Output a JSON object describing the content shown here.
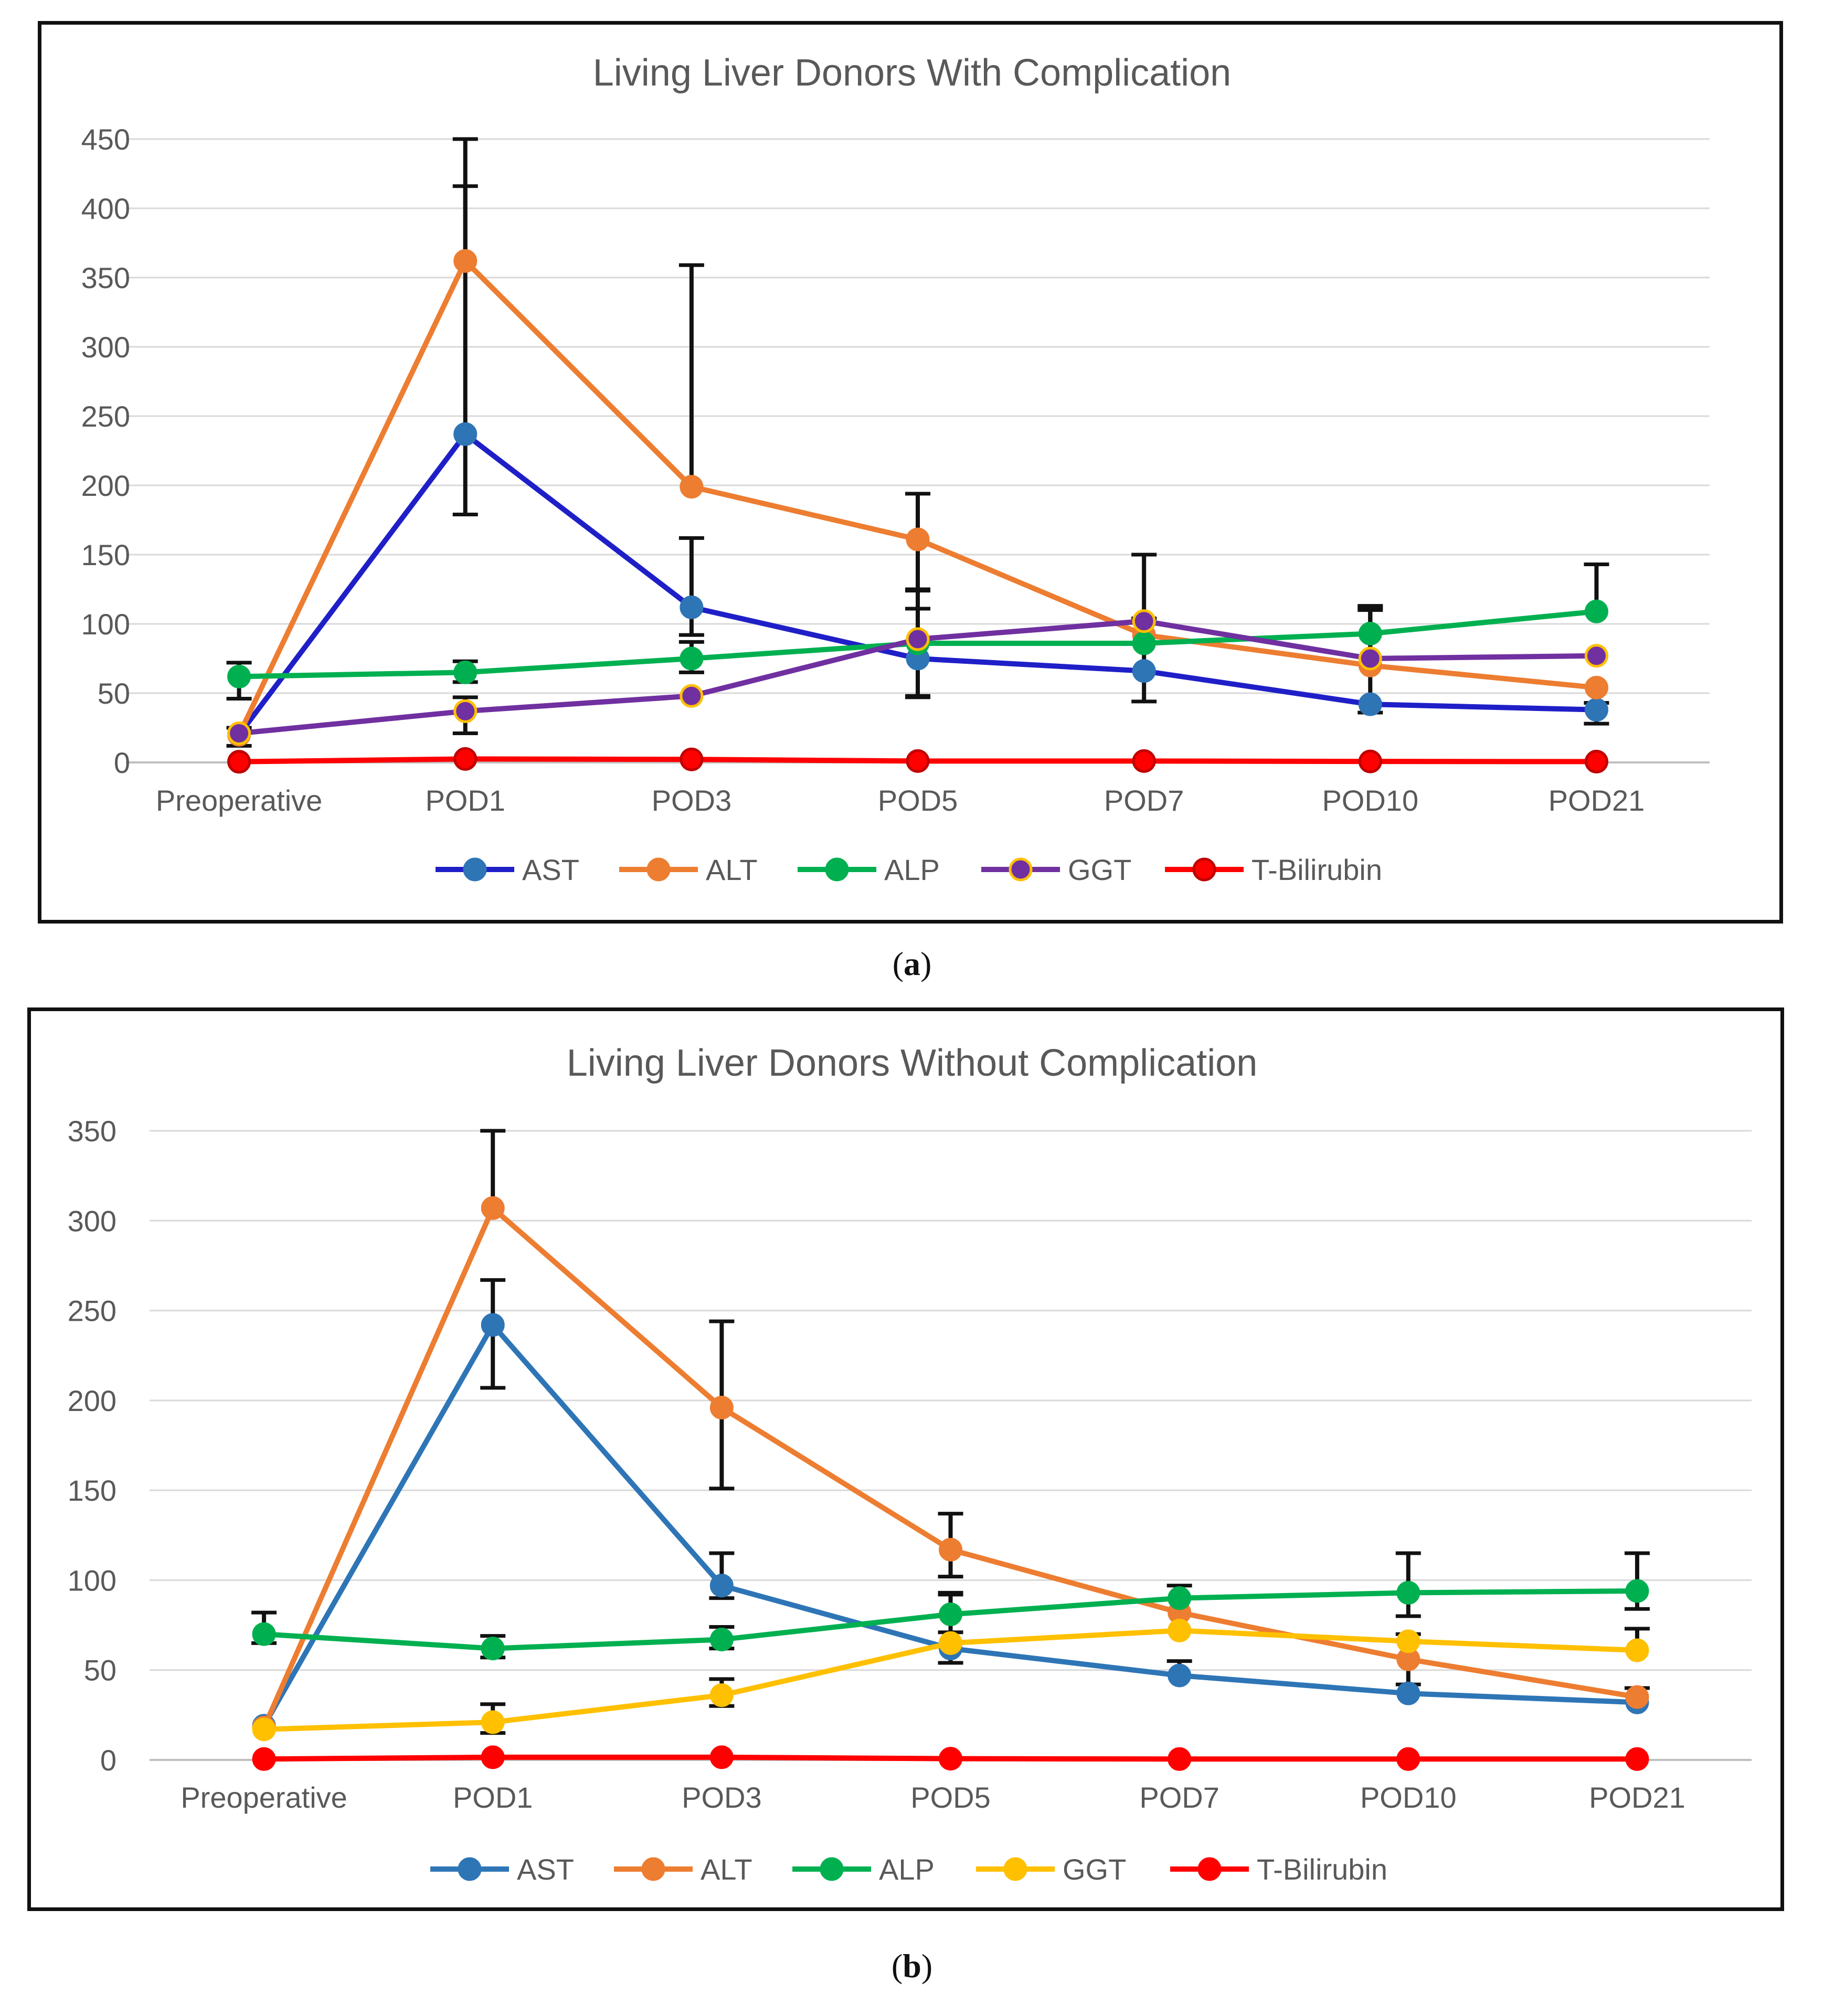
{
  "chart_data": [
    {
      "type": "line",
      "panel_label": "a",
      "title": "Living Liver Donors With Complication",
      "categories": [
        "Preoperative",
        "POD1",
        "POD3",
        "POD5",
        "POD7",
        "POD10",
        "POD21"
      ],
      "ylim": [
        0,
        450
      ],
      "yticks": [
        "0",
        "50",
        "100",
        "150",
        "200",
        "250",
        "300",
        "350",
        "400",
        "450"
      ],
      "ytick_values": [
        0,
        50,
        100,
        150,
        200,
        250,
        300,
        350,
        400,
        450
      ],
      "grid": true,
      "legend_position": "bottom",
      "series": [
        {
          "name": "AST",
          "color": "#1f1fc8",
          "marker_color": "#2e75b6",
          "marker_edge": "#2e75b6",
          "values": [
            20,
            237,
            112,
            75,
            66,
            42,
            38
          ],
          "err_low": [
            8,
            58,
            20,
            28,
            22,
            6,
            10
          ],
          "err_high": [
            5,
            179,
            50,
            50,
            38,
            68,
            5
          ]
        },
        {
          "name": "ALT",
          "color": "#ed7d31",
          "marker_color": "#ed7d31",
          "marker_edge": "#ed7d31",
          "values": [
            20,
            362,
            199,
            161,
            92,
            70,
            54
          ],
          "err_low": [
            0,
            0,
            0,
            50,
            0,
            0,
            0
          ],
          "err_high": [
            0,
            88,
            160,
            33,
            58,
            42,
            0
          ]
        },
        {
          "name": "ALP",
          "color": "#00b050",
          "marker_color": "#00b050",
          "marker_edge": "#00b050",
          "values": [
            62,
            65,
            75,
            86,
            86,
            93,
            109
          ],
          "err_low": [
            16,
            7,
            10,
            38,
            0,
            0,
            0
          ],
          "err_high": [
            10,
            8,
            12,
            38,
            0,
            20,
            34
          ]
        },
        {
          "name": "GGT",
          "color": "#7030a0",
          "marker_color": "#7030a0",
          "marker_edge": "#ffc000",
          "values": [
            21,
            37,
            48,
            89,
            102,
            75,
            77
          ],
          "err_low": [
            0,
            16,
            0,
            0,
            0,
            0,
            0
          ],
          "err_high": [
            0,
            10,
            0,
            0,
            0,
            0,
            0
          ]
        },
        {
          "name": "T-Bilirubin",
          "color": "#ff0000",
          "marker_color": "#ff0000",
          "marker_edge": "#c00000",
          "values": [
            0.5,
            2.5,
            2.2,
            1,
            1,
            0.7,
            0.6
          ],
          "err_low": [
            0,
            0,
            0,
            0,
            0,
            0,
            0
          ],
          "err_high": [
            0,
            0,
            0,
            0,
            0,
            0,
            0
          ]
        }
      ]
    },
    {
      "type": "line",
      "panel_label": "b",
      "title": "Living Liver Donors Without Complication",
      "categories": [
        "Preoperative",
        "POD1",
        "POD3",
        "POD5",
        "POD7",
        "POD10",
        "POD21"
      ],
      "ylim": [
        0,
        350
      ],
      "yticks": [
        "0",
        "50",
        "100",
        "150",
        "200",
        "250",
        "300",
        "350"
      ],
      "ytick_values": [
        0,
        50,
        100,
        150,
        200,
        250,
        300,
        350
      ],
      "grid": true,
      "legend_position": "bottom",
      "series": [
        {
          "name": "AST",
          "color": "#2e75b6",
          "marker_color": "#2e75b6",
          "marker_edge": "#2e75b6",
          "values": [
            19,
            242,
            97,
            62,
            47,
            37,
            32
          ],
          "err_low": [
            0,
            35,
            7,
            8,
            0,
            0,
            0
          ],
          "err_high": [
            0,
            25,
            18,
            30,
            8,
            0,
            0
          ]
        },
        {
          "name": "ALT",
          "color": "#ed7d31",
          "marker_color": "#ed7d31",
          "marker_edge": "#ed7d31",
          "values": [
            18,
            307,
            196,
            117,
            82,
            56,
            35
          ],
          "err_low": [
            0,
            0,
            45,
            15,
            0,
            14,
            0
          ],
          "err_high": [
            0,
            43,
            48,
            20,
            0,
            14,
            5
          ]
        },
        {
          "name": "ALP",
          "color": "#00b050",
          "marker_color": "#00b050",
          "marker_edge": "#00b050",
          "values": [
            70,
            62,
            67,
            81,
            90,
            93,
            94
          ],
          "err_low": [
            5,
            5,
            5,
            10,
            0,
            13,
            10
          ],
          "err_high": [
            12,
            7,
            7,
            12,
            7,
            22,
            21
          ]
        },
        {
          "name": "GGT",
          "color": "#ffc000",
          "marker_color": "#ffc000",
          "marker_edge": "#ffc000",
          "values": [
            17,
            21,
            36,
            65,
            72,
            66,
            61
          ],
          "err_low": [
            0,
            6,
            6,
            0,
            0,
            0,
            0
          ],
          "err_high": [
            0,
            10,
            9,
            0,
            0,
            0,
            12
          ]
        },
        {
          "name": "T-Bilirubin",
          "color": "#ff0000",
          "marker_color": "#ff0000",
          "marker_edge": "#ff0000",
          "values": [
            0.5,
            1.5,
            1.5,
            0.7,
            0.5,
            0.5,
            0.5
          ],
          "err_low": [
            0,
            0,
            0,
            0,
            0,
            0,
            0
          ],
          "err_high": [
            0,
            0,
            0,
            0,
            0,
            0,
            0
          ]
        }
      ]
    }
  ]
}
